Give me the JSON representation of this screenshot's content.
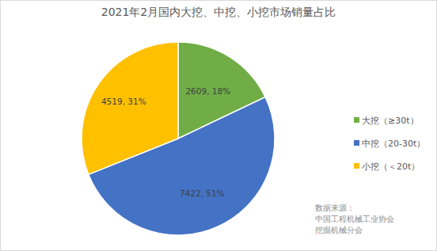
{
  "chart_data": {
    "type": "pie",
    "title": "2021年2月国内大挖、中挖、小挖市场销量占比",
    "categories": [
      "大挖（≥30t）",
      "中挖（20-30t）",
      "小挖（＜20t）"
    ],
    "values": [
      2609,
      7422,
      4519
    ],
    "value_labels": [
      "2609, 18%",
      "7422, 51%",
      "4519, 31%"
    ],
    "colors": [
      "#70ad47",
      "#4472c4",
      "#ffc000"
    ],
    "data_labels": true,
    "legend": "right",
    "source": [
      "数据来源：",
      "中国工程机械工业协会",
      "挖掘机械分会"
    ]
  }
}
